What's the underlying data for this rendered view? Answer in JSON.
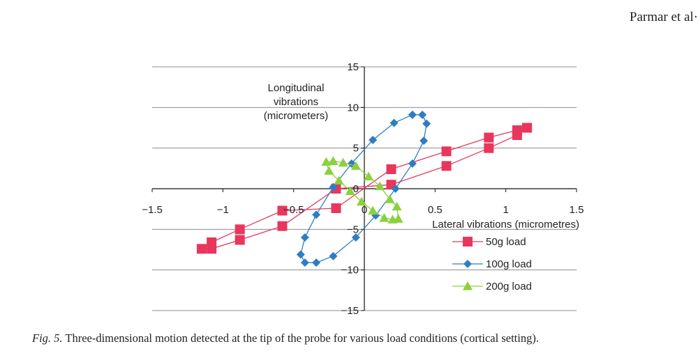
{
  "header": {
    "author": "Parmar et al·"
  },
  "caption": {
    "label": "Fig. 5.",
    "text": "Three-dimensional motion detected at the tip of the probe for various load conditions (cortical setting)."
  },
  "chart_data": {
    "type": "scatter",
    "xlim": [
      -1.5,
      1.5
    ],
    "ylim": [
      -15,
      15
    ],
    "x_ticks": [
      -1.5,
      -1,
      -0.5,
      0,
      0.5,
      1,
      1.5
    ],
    "x_tick_labels": [
      "−1.5",
      "−1",
      "−0.5",
      "0",
      "0.5",
      "1",
      "1.5"
    ],
    "y_ticks": [
      -15,
      -10,
      -5,
      0,
      5,
      10,
      15
    ],
    "y_tick_labels": [
      "−15",
      "−10",
      "−5",
      "0",
      "5",
      "10",
      "15"
    ],
    "xlabel": "Lateral vibrations (micrometres)",
    "ylabel": [
      "Longitudinal",
      "vibrations",
      "(micrometers)"
    ],
    "grid": true,
    "legend_position": "bottom-right",
    "series": [
      {
        "name": "50g load",
        "color": "#e8365c",
        "marker": "square",
        "points": [
          [
            1.15,
            7.5
          ],
          [
            1.08,
            7.2
          ],
          [
            0.88,
            6.3
          ],
          [
            0.58,
            4.6
          ],
          [
            0.19,
            2.4
          ],
          [
            -0.2,
            -2.4
          ],
          [
            -0.58,
            -2.7
          ],
          [
            -0.88,
            -5.0
          ],
          [
            -1.08,
            -6.6
          ],
          [
            -1.15,
            -7.4
          ],
          [
            -1.08,
            -7.4
          ],
          [
            -0.88,
            -6.3
          ],
          [
            -0.58,
            -4.6
          ],
          [
            -0.2,
            0.0
          ],
          [
            0.19,
            0.5
          ],
          [
            0.58,
            2.8
          ],
          [
            0.88,
            5.0
          ],
          [
            1.08,
            6.6
          ],
          [
            1.15,
            7.5
          ]
        ]
      },
      {
        "name": "100g load",
        "color": "#2e7dc2",
        "marker": "diamond",
        "points": [
          [
            0.34,
            9.1
          ],
          [
            0.41,
            9.1
          ],
          [
            0.44,
            8.0
          ],
          [
            0.42,
            5.9
          ],
          [
            0.34,
            3.1
          ],
          [
            0.22,
            0.0
          ],
          [
            0.08,
            -3.3
          ],
          [
            -0.06,
            -6.0
          ],
          [
            -0.22,
            -8.3
          ],
          [
            -0.34,
            -9.1
          ],
          [
            -0.42,
            -9.1
          ],
          [
            -0.45,
            -8.1
          ],
          [
            -0.42,
            -6.0
          ],
          [
            -0.34,
            -3.2
          ],
          [
            -0.22,
            0.2
          ],
          [
            -0.09,
            3.1
          ],
          [
            0.06,
            6.0
          ],
          [
            0.21,
            8.1
          ],
          [
            0.34,
            9.1
          ]
        ]
      },
      {
        "name": "200g load",
        "color": "#8bd13f",
        "marker": "triangle",
        "points": [
          [
            -0.22,
            3.4
          ],
          [
            -0.15,
            3.2
          ],
          [
            -0.06,
            2.8
          ],
          [
            0.03,
            1.5
          ],
          [
            0.11,
            0.3
          ],
          [
            0.18,
            -1.3
          ],
          [
            0.23,
            -2.2
          ],
          [
            0.24,
            -3.7
          ],
          [
            0.2,
            -3.8
          ],
          [
            0.14,
            -3.6
          ],
          [
            0.06,
            -2.7
          ],
          [
            -0.02,
            -1.6
          ],
          [
            -0.1,
            -0.3
          ],
          [
            -0.18,
            1.0
          ],
          [
            -0.25,
            2.2
          ],
          [
            -0.27,
            3.3
          ],
          [
            -0.22,
            3.4
          ]
        ]
      }
    ]
  }
}
